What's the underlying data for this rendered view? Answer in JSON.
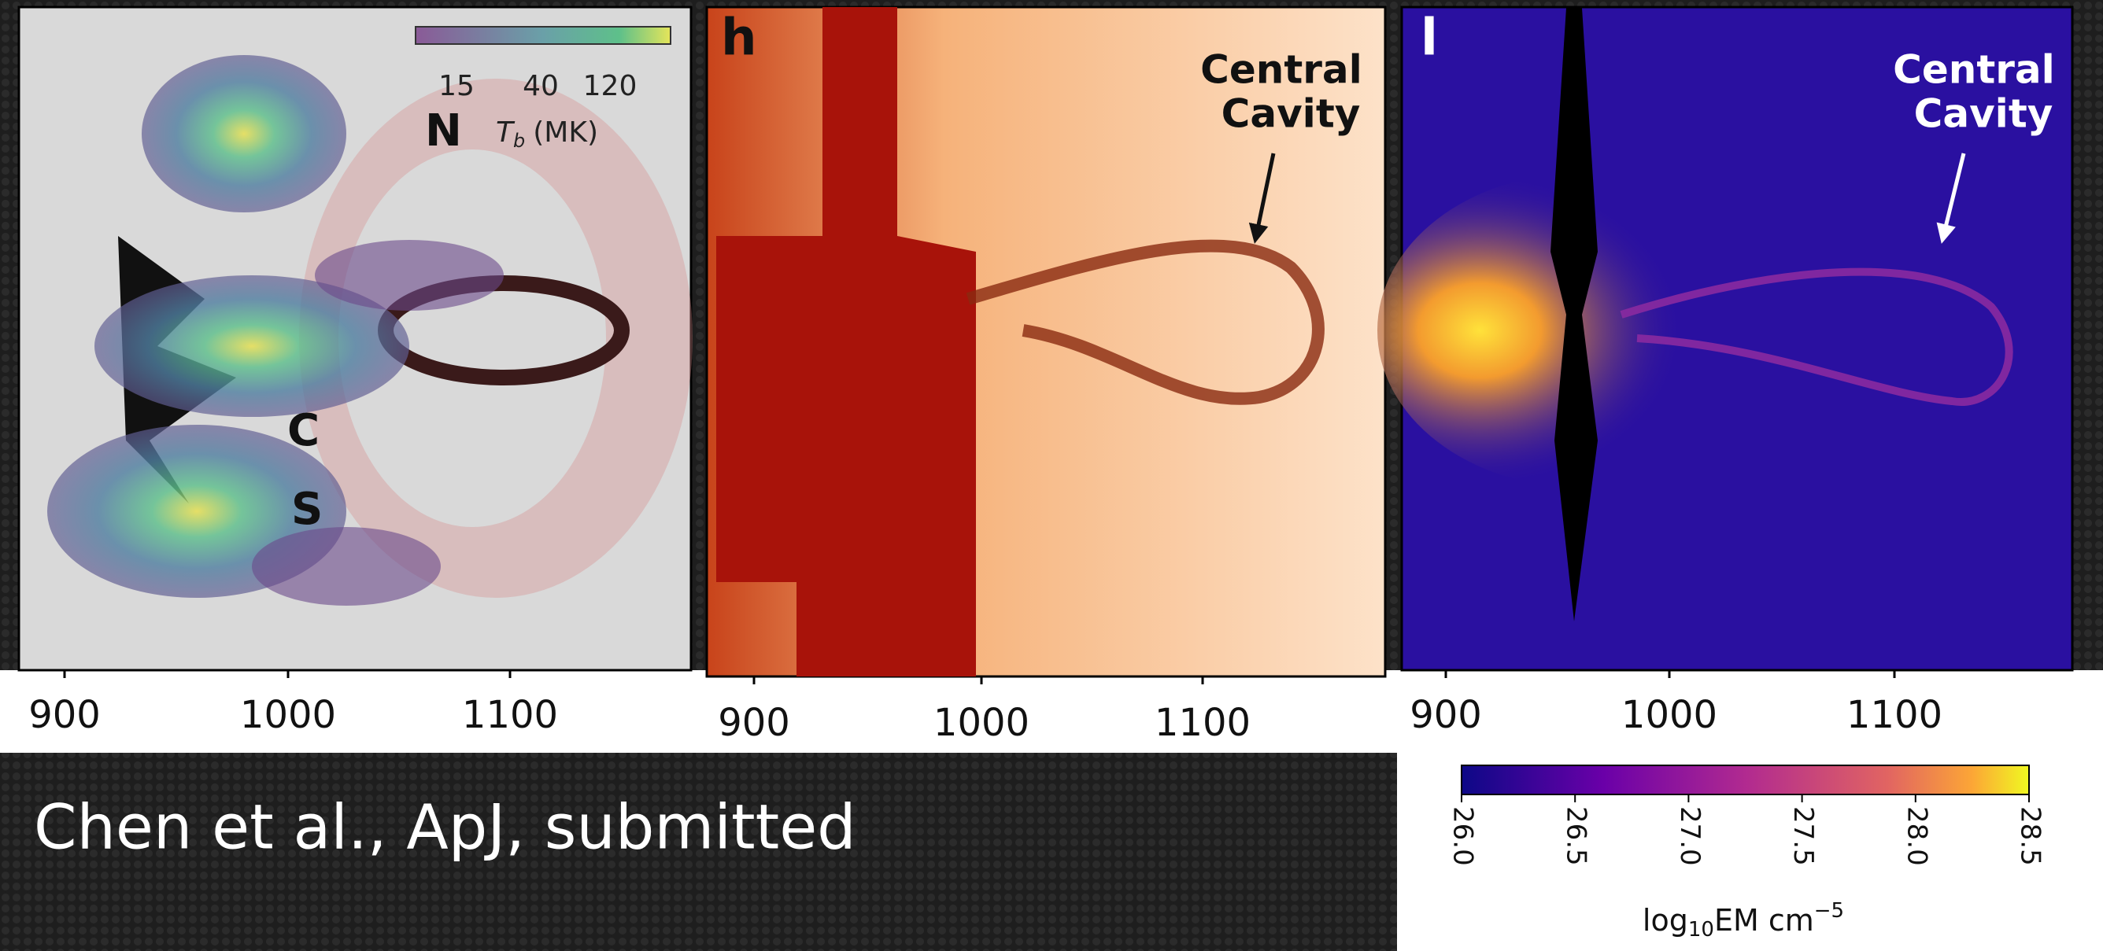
{
  "panels": [
    {
      "x_ticks": [
        "900",
        "1000",
        "1100"
      ],
      "markers": [
        "N",
        "C",
        "S"
      ],
      "colorbar": {
        "ticks": [
          "15",
          "40",
          "120"
        ],
        "label_symbol": "T",
        "label_subscript": "b",
        "label_unit": "(MK)"
      }
    },
    {
      "letter": "h",
      "annotation": {
        "line1": "Central",
        "line2": "Cavity"
      },
      "x_ticks": [
        "900",
        "1000",
        "1100"
      ]
    },
    {
      "letter": "l",
      "annotation": {
        "line1": "Central",
        "line2": "Cavity"
      },
      "x_ticks": [
        "900",
        "1000",
        "1100"
      ],
      "colorbar": {
        "ticks": [
          "26.0",
          "26.5",
          "27.0",
          "27.5",
          "28.0",
          "28.5"
        ],
        "label_prefix": "log",
        "label_subscript": "10",
        "label_main": "EM cm",
        "label_superscript": "−5"
      }
    }
  ],
  "citation": "Chen et al., ApJ, submitted"
}
